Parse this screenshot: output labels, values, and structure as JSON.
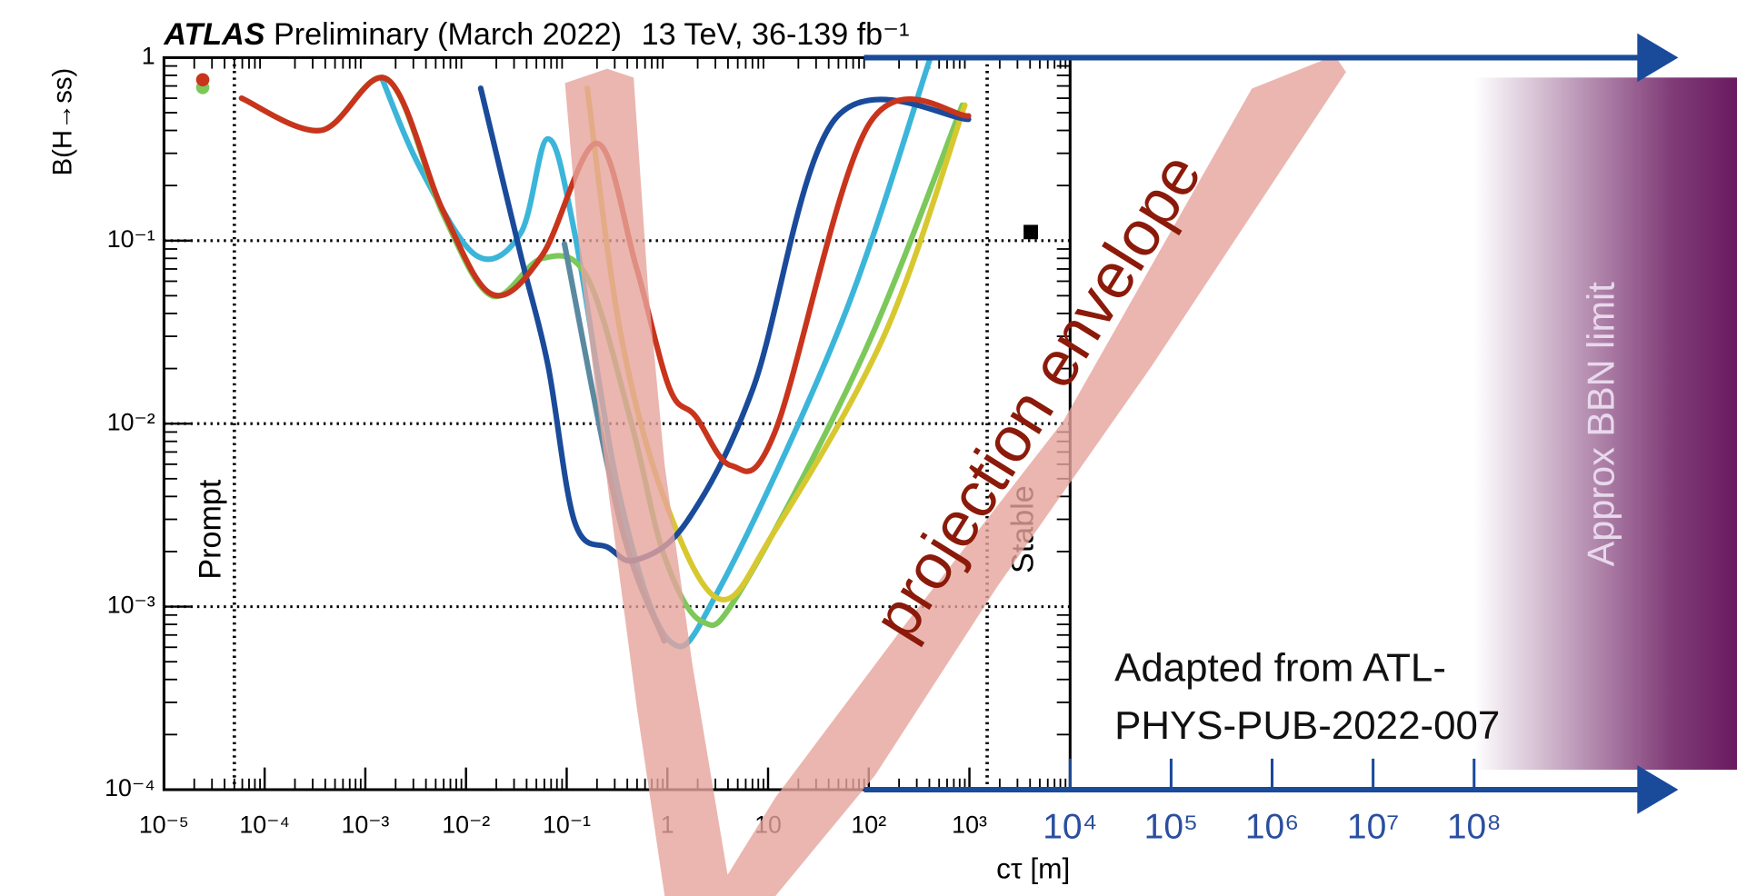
{
  "chart_data": [
    {
      "type": "line",
      "title": {
        "experiment": "ATLAS",
        "status": "Preliminary",
        "date": "(March 2022)",
        "energy_lumi": "13 TeV, 36-139 fb⁻¹"
      },
      "x_label": "cτ [m]",
      "y_label": "B(H→ss)",
      "x_log": true,
      "y_log": true,
      "grid": true,
      "xlim": [
        1e-05,
        10000.0
      ],
      "ylim": [
        0.0001,
        1
      ],
      "xticks": [
        {
          "value": 1e-05,
          "label": "10⁻⁵"
        },
        {
          "value": 0.0001,
          "label": "10⁻⁴"
        },
        {
          "value": 0.001,
          "label": "10⁻³"
        },
        {
          "value": 0.01,
          "label": "10⁻²"
        },
        {
          "value": 0.1,
          "label": "10⁻¹"
        },
        1,
        10,
        {
          "value": 100,
          "label": "10²"
        },
        {
          "value": 1000,
          "label": "10³"
        }
      ],
      "yticks": [
        {
          "value": 0.0001,
          "label": "10⁻⁴"
        },
        {
          "value": 0.001,
          "label": "10⁻³"
        },
        {
          "value": 0.01,
          "label": "10⁻²"
        },
        {
          "value": 0.1,
          "label": "10⁻¹"
        },
        1
      ],
      "vlines": [
        {
          "x": 5e-05,
          "label": "Prompt"
        },
        {
          "x": 1500,
          "label": "Stable"
        }
      ],
      "series": [
        {
          "color": "#3bb5d9",
          "x": [
            0.00145,
            0.0035,
            0.0126,
            0.035,
            0.065,
            0.12,
            0.34,
            1.05,
            3.3,
            54,
            400
          ],
          "values": [
            0.78,
            0.25,
            0.083,
            0.11,
            0.36,
            0.11,
            0.0039,
            0.00065,
            0.00126,
            0.036,
            0.96
          ]
        },
        {
          "color": "#7cc85a",
          "x": [
            5.9e-05,
            0.00036,
            0.00166,
            0.0059,
            0.018,
            0.057,
            0.16,
            0.44,
            0.93,
            2.2,
            5.5,
            89,
            850
          ],
          "values": [
            0.6,
            0.4,
            0.76,
            0.14,
            0.05,
            0.08,
            0.063,
            0.01,
            0.0019,
            0.00083,
            0.00126,
            0.024,
            0.55
          ]
        },
        {
          "color": "#5a8aa0",
          "x": [
            0.095,
            0.34,
            0.93
          ],
          "values": [
            0.096,
            0.0029,
            0.00065
          ]
        },
        {
          "color": "#d8c830",
          "x": [
            0.16,
            0.34,
            0.93,
            3.3,
            11.7,
            145,
            900
          ],
          "values": [
            0.68,
            0.032,
            0.0039,
            0.0011,
            0.0026,
            0.031,
            0.55
          ]
        },
        {
          "color": "#1a4a9a",
          "x": [
            0.014,
            0.035,
            0.065,
            0.12,
            0.26,
            0.49,
            1.55,
            7.1,
            46,
            980
          ],
          "values": [
            0.68,
            0.083,
            0.021,
            0.0029,
            0.0021,
            0.0018,
            0.0029,
            0.0156,
            0.46,
            0.46
          ]
        },
        {
          "color": "#c8341c",
          "x": [
            5.9e-05,
            0.00036,
            0.00166,
            0.0059,
            0.018,
            0.057,
            0.2,
            0.49,
            1.05,
            1.9,
            4.3,
            11.7,
            100,
            980
          ],
          "values": [
            0.6,
            0.4,
            0.76,
            0.146,
            0.051,
            0.083,
            0.34,
            0.072,
            0.0156,
            0.011,
            0.0059,
            0.009,
            0.43,
            0.48
          ]
        }
      ]
    },
    {
      "type": "span",
      "x_log": true,
      "xlim": [
        10000.0,
        10000000000.0
      ],
      "xticks": [
        {
          "value": 10000.0,
          "label": "10⁴"
        },
        {
          "value": 100000.0,
          "label": "10⁵"
        },
        {
          "value": 1000000.0,
          "label": "10⁶"
        },
        {
          "value": 10000000.0,
          "label": "10⁷"
        },
        {
          "value": 100000000.0,
          "label": "10⁸"
        }
      ],
      "span_start": 100000000.0,
      "span_label": "Approx BBN limit",
      "color": "#6a1a60",
      "annotations": {
        "envelope": "projection envelope",
        "source": [
          "Adapted from ATL-",
          "PHYS-PUB-2022-007"
        ]
      }
    }
  ]
}
